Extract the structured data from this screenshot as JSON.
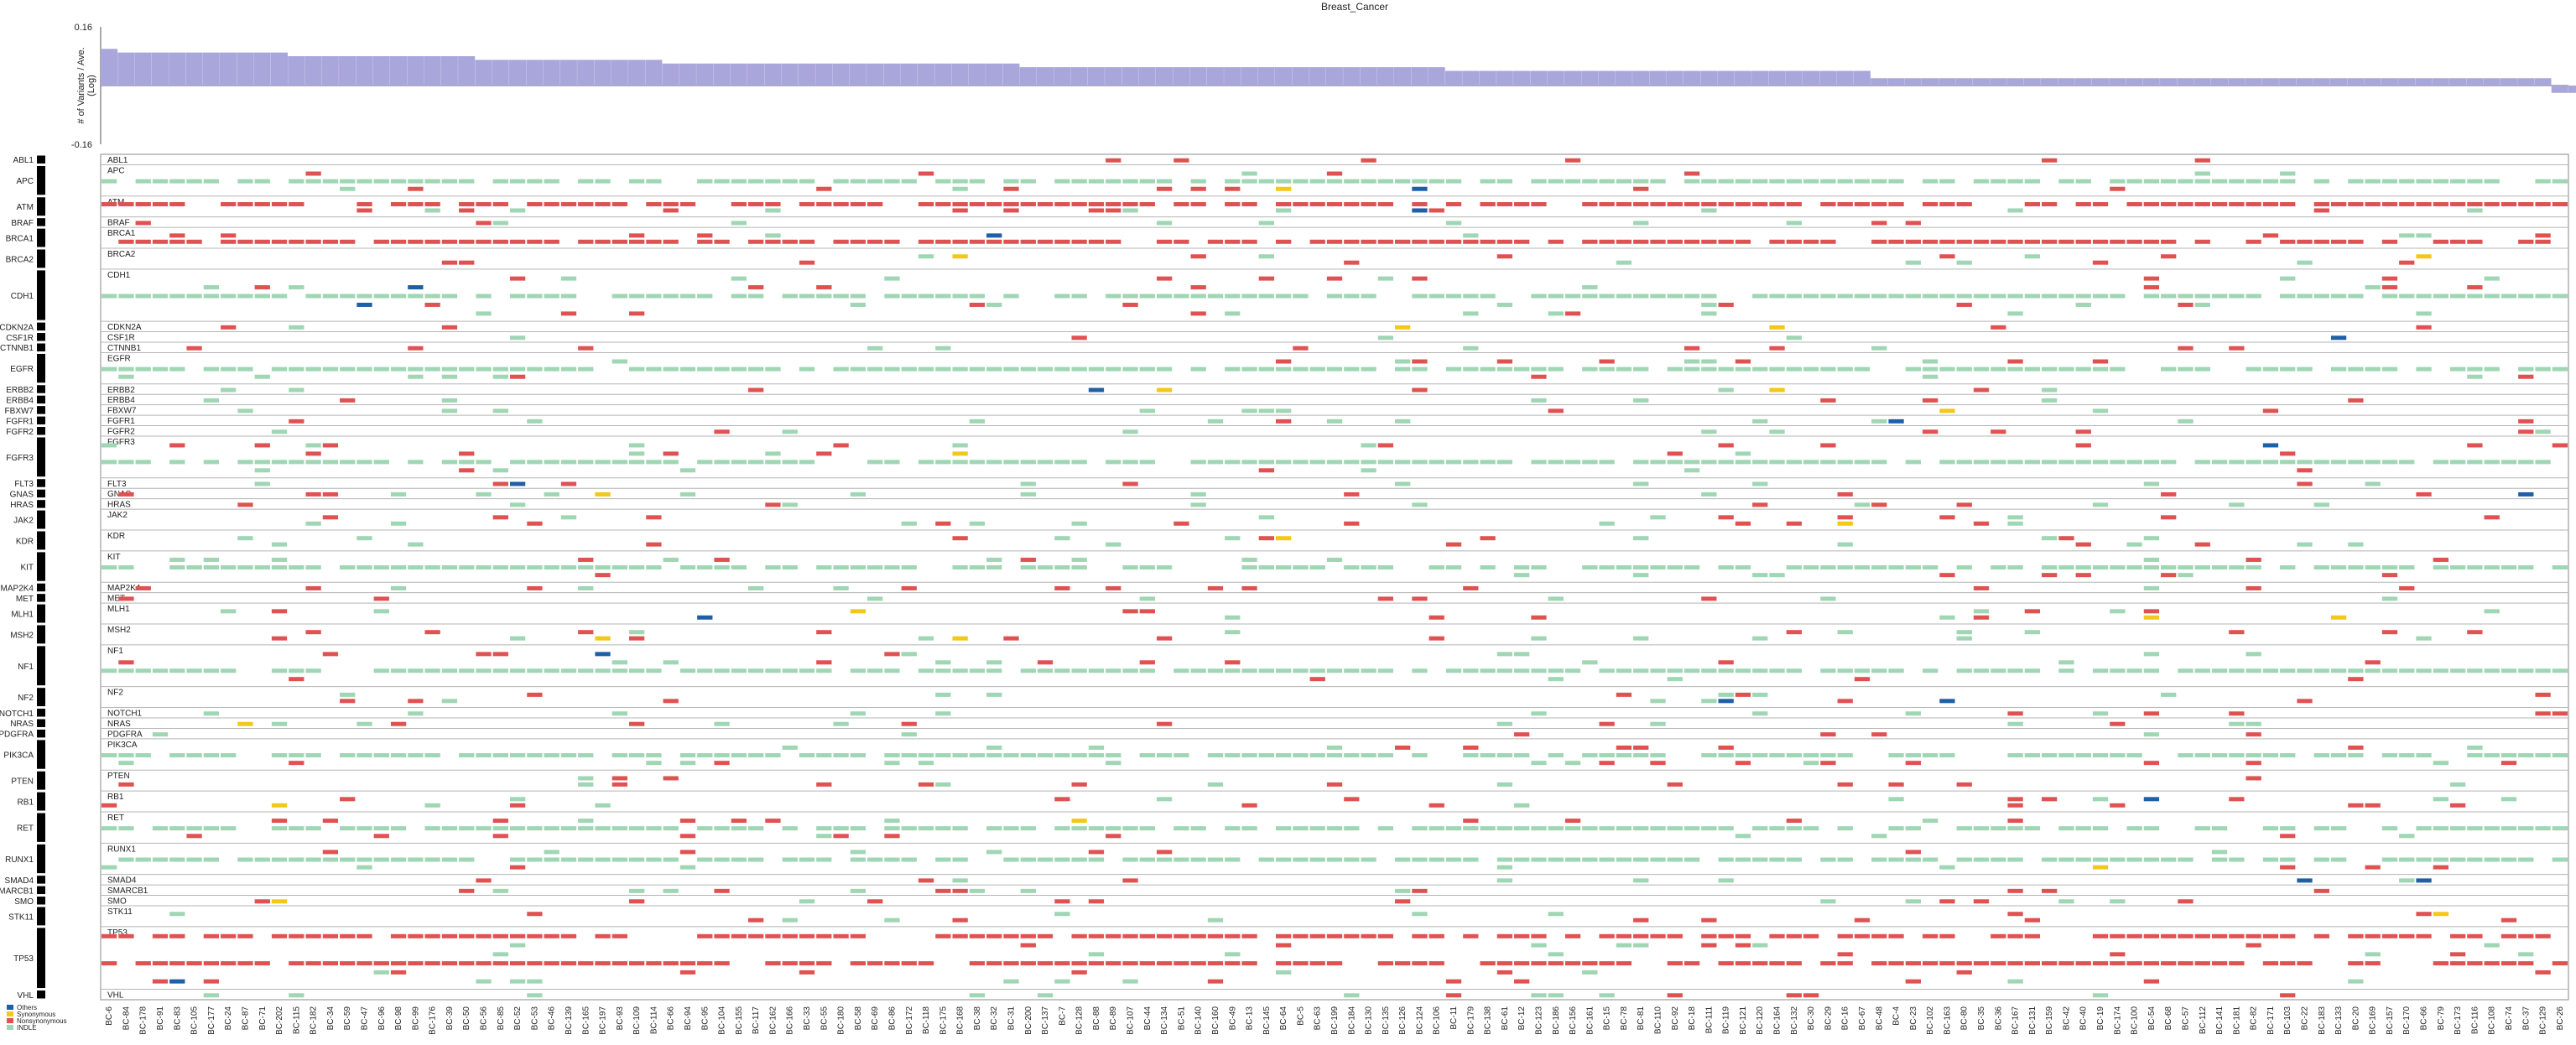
{
  "chart_data": {
    "type": "heatmap",
    "title": "Breast_Cancer",
    "bar_panel": {
      "type": "bar",
      "ylabel": "# of Variants / Ave.\n(Log)",
      "ylim": [
        -0.16,
        0.16
      ],
      "tick_labels": [
        "0.16",
        "-0.16"
      ],
      "values": [
        0.1,
        0.09,
        0.09,
        0.09,
        0.09,
        0.09,
        0.09,
        0.09,
        0.09,
        0.09,
        0.09,
        0.08,
        0.08,
        0.08,
        0.08,
        0.08,
        0.08,
        0.08,
        0.08,
        0.08,
        0.08,
        0.08,
        0.07,
        0.07,
        0.07,
        0.07,
        0.07,
        0.07,
        0.07,
        0.07,
        0.07,
        0.07,
        0.07,
        0.06,
        0.06,
        0.06,
        0.06,
        0.06,
        0.06,
        0.06,
        0.06,
        0.06,
        0.06,
        0.06,
        0.06,
        0.06,
        0.06,
        0.06,
        0.06,
        0.06,
        0.06,
        0.06,
        0.06,
        0.06,
        0.05,
        0.05,
        0.05,
        0.05,
        0.05,
        0.05,
        0.05,
        0.05,
        0.05,
        0.05,
        0.05,
        0.05,
        0.05,
        0.05,
        0.05,
        0.05,
        0.05,
        0.05,
        0.05,
        0.05,
        0.05,
        0.05,
        0.05,
        0.05,
        0.05,
        0.04,
        0.04,
        0.04,
        0.04,
        0.04,
        0.04,
        0.04,
        0.04,
        0.04,
        0.04,
        0.04,
        0.04,
        0.04,
        0.04,
        0.04,
        0.04,
        0.04,
        0.04,
        0.04,
        0.04,
        0.04,
        0.04,
        0.04,
        0.04,
        0.04,
        0.02,
        0.02,
        0.02,
        0.02,
        0.02,
        0.02,
        0.02,
        0.02,
        0.02,
        0.02,
        0.02,
        0.02,
        0.02,
        0.02,
        0.02,
        0.02,
        0.02,
        0.02,
        0.02,
        0.02,
        0.02,
        0.02,
        0.02,
        0.02,
        0.02,
        0.02,
        0.02,
        0.02,
        0.02,
        0.02,
        0.02,
        0.02,
        0.02,
        0.02,
        0.02,
        0.02,
        0.02,
        0.02,
        0.02,
        0.02,
        -0.02,
        -0.02,
        -0.02,
        -0.02,
        -0.02,
        -0.02,
        -0.02,
        -0.02,
        -0.02,
        -0.02,
        -0.02,
        -0.02,
        -0.02,
        -0.02,
        -0.02,
        -0.02,
        -0.02,
        -0.02,
        -0.02,
        -0.02,
        -0.02,
        -0.02,
        -0.02,
        -0.02,
        -0.02,
        -0.02,
        -0.02,
        -0.02,
        -0.02,
        -0.02,
        -0.02,
        -0.02,
        -0.04,
        -0.04,
        -0.04,
        -0.04,
        -0.04,
        -0.04,
        -0.04,
        -0.04,
        -0.04,
        -0.04,
        -0.04,
        -0.04,
        -0.04,
        -0.04,
        -0.04,
        -0.04,
        -0.04,
        -0.04,
        -0.04,
        -0.04,
        -0.04,
        -0.04,
        -0.04,
        -0.04,
        -0.04,
        -0.04,
        -0.04,
        -0.04,
        -0.04,
        -0.04,
        -0.04,
        -0.06,
        -0.06,
        -0.06,
        -0.06,
        -0.06,
        -0.06,
        -0.06,
        -0.06,
        -0.06,
        -0.06,
        -0.06,
        -0.06,
        -0.06,
        -0.06,
        -0.06,
        -0.06,
        -0.06,
        -0.06,
        -0.06,
        -0.06,
        -0.06,
        -0.06,
        -0.06,
        -0.06,
        -0.06,
        -0.06,
        -0.07,
        -0.07,
        -0.07,
        -0.07,
        -0.07,
        -0.07,
        -0.07,
        -0.07,
        -0.07,
        -0.07,
        -0.09,
        -0.09,
        -0.09,
        -0.09,
        -0.09,
        -0.09,
        -0.09,
        -0.09,
        -0.09,
        -0.09,
        -0.09,
        -0.09,
        -0.11,
        -0.12,
        -0.14
      ]
    },
    "genes": [
      {
        "name": "ABL1",
        "weight": 1
      },
      {
        "name": "APC",
        "weight": 3
      },
      {
        "name": "ATM",
        "weight": 2
      },
      {
        "name": "BRAF",
        "weight": 1
      },
      {
        "name": "BRCA1",
        "weight": 2
      },
      {
        "name": "BRCA2",
        "weight": 2
      },
      {
        "name": "CDH1",
        "weight": 5
      },
      {
        "name": "CDKN2A",
        "weight": 1
      },
      {
        "name": "CSF1R",
        "weight": 1
      },
      {
        "name": "CTNNB1",
        "weight": 1
      },
      {
        "name": "EGFR",
        "weight": 3
      },
      {
        "name": "ERBB2",
        "weight": 1
      },
      {
        "name": "ERBB4",
        "weight": 1
      },
      {
        "name": "FBXW7",
        "weight": 1
      },
      {
        "name": "FGFR1",
        "weight": 1
      },
      {
        "name": "FGFR2",
        "weight": 1
      },
      {
        "name": "FGFR3",
        "weight": 4
      },
      {
        "name": "FLT3",
        "weight": 1
      },
      {
        "name": "GNAS",
        "weight": 1
      },
      {
        "name": "HRAS",
        "weight": 1
      },
      {
        "name": "JAK2",
        "weight": 2
      },
      {
        "name": "KDR",
        "weight": 2
      },
      {
        "name": "KIT",
        "weight": 3
      },
      {
        "name": "MAP2K4",
        "weight": 1
      },
      {
        "name": "MET",
        "weight": 1
      },
      {
        "name": "MLH1",
        "weight": 2
      },
      {
        "name": "MSH2",
        "weight": 2
      },
      {
        "name": "NF1",
        "weight": 4
      },
      {
        "name": "NF2",
        "weight": 2
      },
      {
        "name": "NOTCH1",
        "weight": 1
      },
      {
        "name": "NRAS",
        "weight": 1
      },
      {
        "name": "PDGFRA",
        "weight": 1
      },
      {
        "name": "PIK3CA",
        "weight": 3
      },
      {
        "name": "PTEN",
        "weight": 2
      },
      {
        "name": "RB1",
        "weight": 2
      },
      {
        "name": "RET",
        "weight": 3
      },
      {
        "name": "RUNX1",
        "weight": 3
      },
      {
        "name": "SMAD4",
        "weight": 1
      },
      {
        "name": "SMARCB1",
        "weight": 1
      },
      {
        "name": "SMO",
        "weight": 1
      },
      {
        "name": "STK11",
        "weight": 2
      },
      {
        "name": "TP53",
        "weight": 6
      },
      {
        "name": "VHL",
        "weight": 1
      }
    ],
    "samples": [
      "BC-6",
      "BC-84",
      "BC-178",
      "BC-91",
      "BC-83",
      "BC-105",
      "BC-177",
      "BC-24",
      "BC-87",
      "BC-71",
      "BC-202",
      "BC-115",
      "BC-182",
      "BC-34",
      "BC-59",
      "BC-47",
      "BC-96",
      "BC-98",
      "BC-99",
      "BC-176",
      "BC-39",
      "BC-50",
      "BC-56",
      "BC-85",
      "BC-52",
      "BC-53",
      "BC-46",
      "BC-139",
      "BC-165",
      "BC-197",
      "BC-93",
      "BC-109",
      "BC-114",
      "BC-66",
      "BC-94",
      "BC-95",
      "BC-104",
      "BC-155",
      "BC-117",
      "BC-162",
      "BC-166",
      "BC-33",
      "BC-55",
      "BC-180",
      "BC-58",
      "BC-69",
      "BC-86",
      "BC-172",
      "BC-118",
      "BC-175",
      "BC-168",
      "BC-38",
      "BC-32",
      "BC-31",
      "BC-200",
      "BC-137",
      "BC-7",
      "BC-128",
      "BC-88",
      "BC-89",
      "BC-107",
      "BC-44",
      "BC-134",
      "BC-51",
      "BC-140",
      "BC-160",
      "BC-49",
      "BC-13",
      "BC-145",
      "BC-64",
      "BC-5",
      "BC-63",
      "BC-199",
      "BC-184",
      "BC-130",
      "BC-135",
      "BC-126",
      "BC-124",
      "BC-106",
      "BC-11",
      "BC-179",
      "BC-138",
      "BC-61",
      "BC-12",
      "BC-123",
      "BC-186",
      "BC-156",
      "BC-161",
      "BC-15",
      "BC-78",
      "BC-81",
      "BC-110",
      "BC-92",
      "BC-18",
      "BC-111",
      "BC-119",
      "BC-121",
      "BC-120",
      "BC-164",
      "BC-132",
      "BC-30",
      "BC-29",
      "BC-16",
      "BC-67",
      "BC-48",
      "BC-4",
      "BC-23",
      "BC-102",
      "BC-163",
      "BC-80",
      "BC-35",
      "BC-36",
      "BC-167",
      "BC-131",
      "BC-159",
      "BC-42",
      "BC-40",
      "BC-19",
      "BC-174",
      "BC-100",
      "BC-54",
      "BC-68",
      "BC-57",
      "BC-112",
      "BC-141",
      "BC-181",
      "BC-82",
      "BC-171",
      "BC-103",
      "BC-22",
      "BC-183",
      "BC-133",
      "BC-20",
      "BC-169",
      "BC-157",
      "BC-170",
      "BC-66",
      "BC-79",
      "BC-173",
      "BC-116",
      "BC-108",
      "BC-74",
      "BC-37",
      "BC-129",
      "BC-26"
    ],
    "legend": [
      {
        "label": "Others",
        "color": "#1f5fa6"
      },
      {
        "label": "Synonymous",
        "color": "#f2c81b"
      },
      {
        "label": "Nonsynonymous",
        "color": "#e05252"
      },
      {
        "label": "INDLE",
        "color": "#9fd6b4"
      }
    ],
    "bar_color": "#a9a6db",
    "grid": true,
    "legend_position": "bottom-left"
  }
}
